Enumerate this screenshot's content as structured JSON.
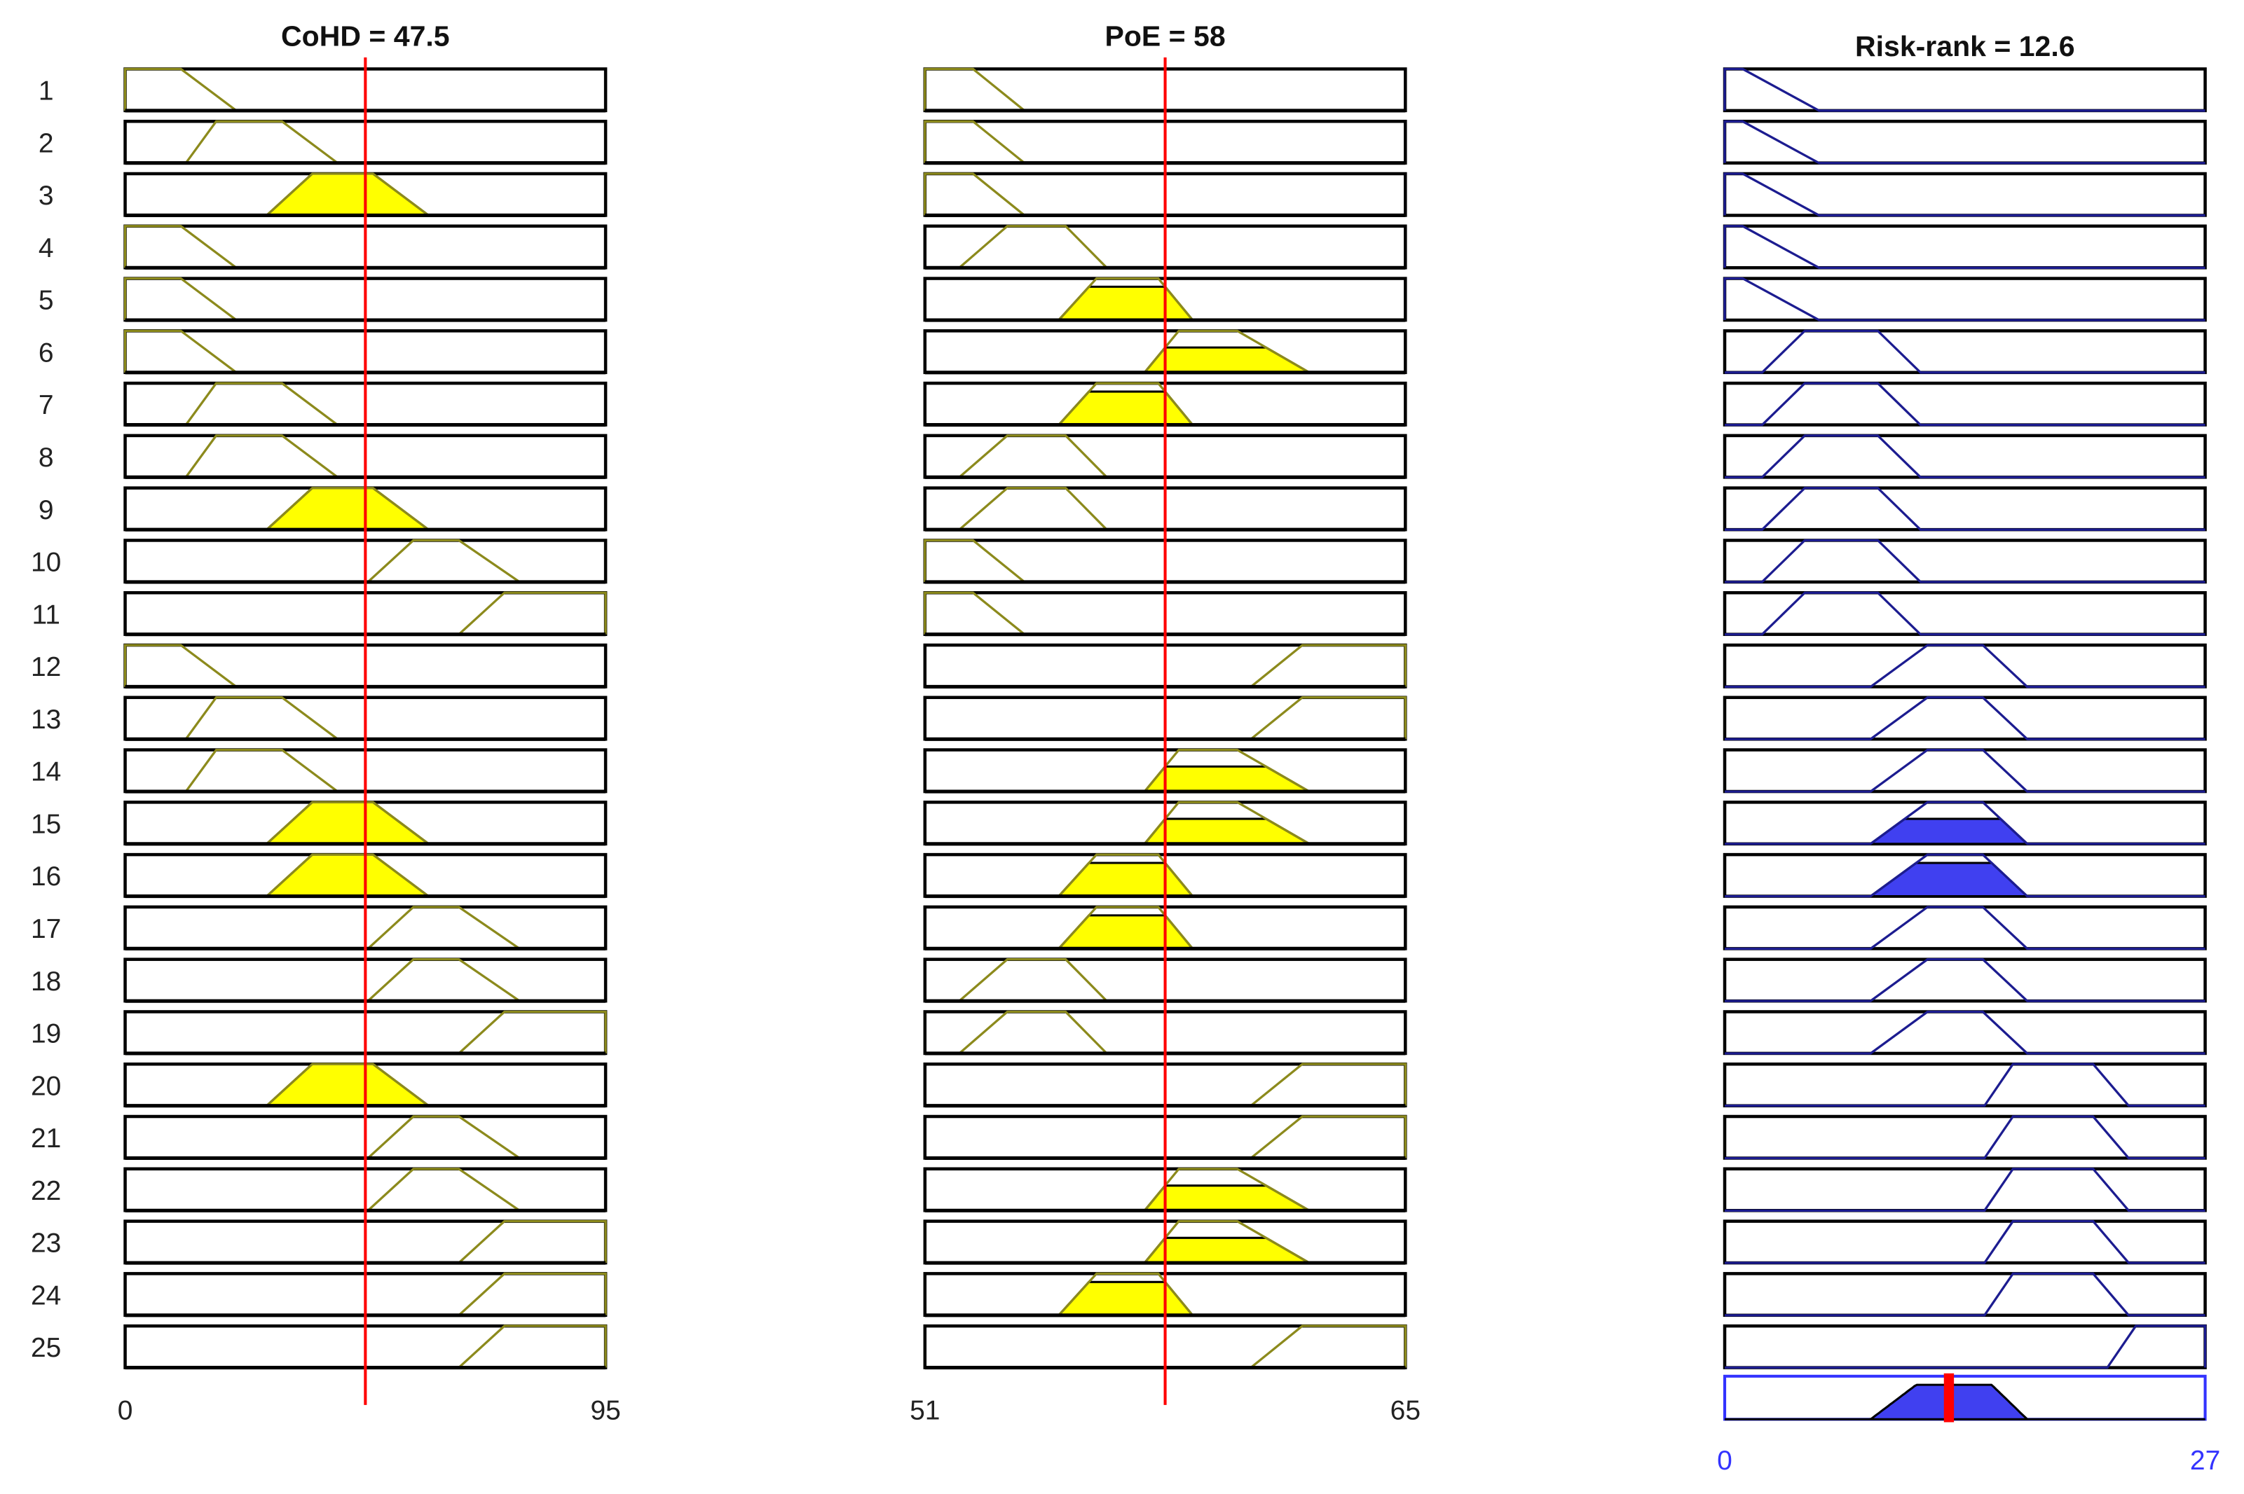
{
  "chart_data": {
    "type": "fuzzy-rule-viewer",
    "colors": {
      "input_mf": "#8c8a1c",
      "input_fill": "#ffff00",
      "output_mf": "#1c1c90",
      "output_fill": "#4040f0",
      "crisp_line": "#ff0000",
      "output_axis": "#3333ff"
    },
    "rule_numbers": [
      "1",
      "2",
      "3",
      "4",
      "5",
      "6",
      "7",
      "8",
      "9",
      "10",
      "11",
      "12",
      "13",
      "14",
      "15",
      "16",
      "17",
      "18",
      "19",
      "20",
      "21",
      "22",
      "23",
      "24",
      "25"
    ],
    "inputs": [
      {
        "name": "CoHD",
        "value": 47.5,
        "title": "CoHD = 47.5",
        "range": [
          0,
          95
        ],
        "tick_labels": [
          "0",
          "95"
        ],
        "mfs": {
          "L": [
            0,
            0,
            11,
            22
          ],
          "ML": [
            12,
            18,
            31,
            42
          ],
          "M": [
            28,
            37,
            49,
            60
          ],
          "H": [
            48,
            57,
            66,
            78
          ],
          "VH": [
            66,
            75,
            95,
            95
          ]
        },
        "rules": [
          "L",
          "ML",
          "M",
          "L",
          "L",
          "L",
          "ML",
          "ML",
          "M",
          "H",
          "VH",
          "L",
          "ML",
          "ML",
          "M",
          "M",
          "H",
          "H",
          "VH",
          "M",
          "H",
          "H",
          "VH",
          "VH",
          "VH"
        ]
      },
      {
        "name": "PoE",
        "value": 58,
        "title": "PoE = 58",
        "range": [
          51,
          65
        ],
        "tick_labels": [
          "51",
          "65"
        ],
        "mfs": {
          "L": [
            51,
            51,
            52.4,
            53.9
          ],
          "ML": [
            52,
            53.4,
            55.1,
            56.3
          ],
          "M": [
            54.9,
            56,
            57.8,
            58.8
          ],
          "MH": [
            57.4,
            58.4,
            60.1,
            62.2
          ],
          "H": [
            60.5,
            62,
            65,
            65
          ]
        },
        "rules": [
          "L",
          "L",
          "L",
          "ML",
          "M",
          "MH",
          "M",
          "ML",
          "ML",
          "L",
          "L",
          "H",
          "H",
          "MH",
          "MH",
          "M",
          "M",
          "ML",
          "ML",
          "H",
          "H",
          "MH",
          "MH",
          "M",
          "H"
        ]
      }
    ],
    "output": {
      "name": "Risk-rank",
      "value": 12.6,
      "title": "Risk-rank = 12.6",
      "range": [
        0,
        27
      ],
      "tick_labels": [
        "0",
        "27"
      ],
      "mfs": {
        "VL": [
          0,
          0,
          1,
          5.3
        ],
        "L": [
          2.1,
          4.5,
          8.6,
          11
        ],
        "M": [
          8.2,
          11.4,
          14.5,
          17
        ],
        "H": [
          14.6,
          16.2,
          20.7,
          22.7
        ],
        "VH": [
          21.5,
          23.1,
          27,
          27
        ]
      },
      "rules": [
        "VL",
        "VL",
        "VL",
        "VL",
        "VL",
        "L",
        "L",
        "L",
        "L",
        "L",
        "L",
        "M",
        "M",
        "M",
        "M",
        "M",
        "M",
        "M",
        "M",
        "H",
        "H",
        "H",
        "H",
        "H",
        "VH"
      ]
    }
  }
}
